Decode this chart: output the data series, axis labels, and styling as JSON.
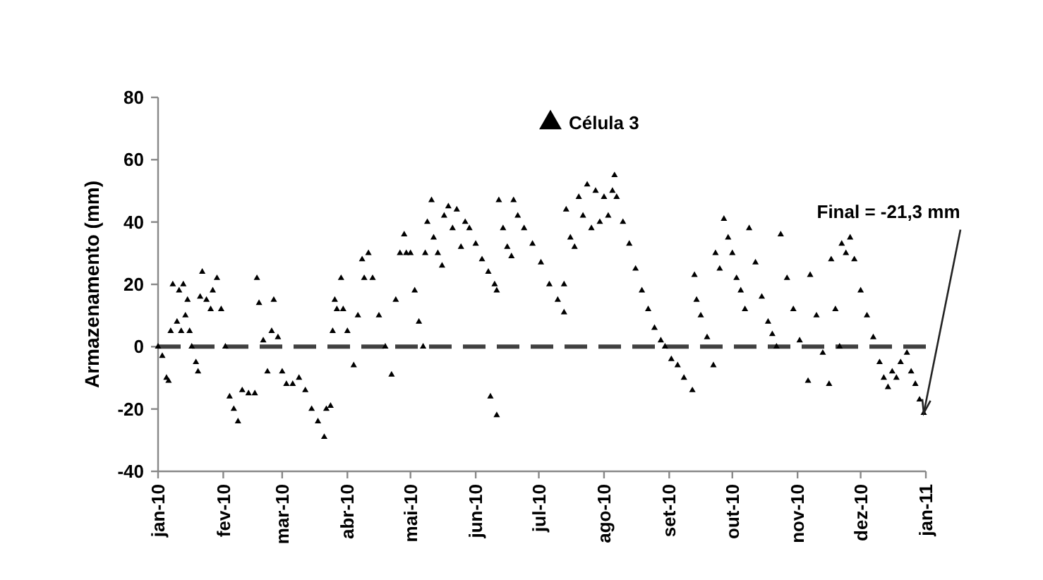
{
  "chart_data": {
    "type": "scatter",
    "ylabel": "Armazenamento (mm)",
    "marker": "triangle",
    "legend": "top",
    "grid": false,
    "xlim": [
      "2010-01-01",
      "2011-01-01"
    ],
    "xticks": [
      {
        "value": "2010-01",
        "label": "jan-10"
      },
      {
        "value": "2010-02",
        "label": "fev-10"
      },
      {
        "value": "2010-03",
        "label": "mar-10"
      },
      {
        "value": "2010-04",
        "label": "abr-10"
      },
      {
        "value": "2010-05",
        "label": "mai-10"
      },
      {
        "value": "2010-06",
        "label": "jun-10"
      },
      {
        "value": "2010-07",
        "label": "jul-10"
      },
      {
        "value": "2010-08",
        "label": "ago-10"
      },
      {
        "value": "2010-09",
        "label": "set-10"
      },
      {
        "value": "2010-10",
        "label": "out-10"
      },
      {
        "value": "2010-11",
        "label": "nov-10"
      },
      {
        "value": "2010-12",
        "label": "dez-10"
      },
      {
        "value": "2011-01",
        "label": "jan-11"
      }
    ],
    "ylim": [
      -40,
      80
    ],
    "yticks": [
      -40,
      -20,
      0,
      20,
      40,
      60,
      80
    ],
    "ref_lines": [
      {
        "axis": "y",
        "value": 0,
        "color": "#404040",
        "line_style": "dashed"
      }
    ],
    "annotations": [
      {
        "text": "Final = -21,3 mm",
        "x": "2010-12-31",
        "y": -21.3
      }
    ],
    "series": [
      {
        "name": "Célula 3",
        "color": "#000000",
        "x": [
          "2010-01-01",
          "2010-01-03",
          "2010-01-05",
          "2010-01-06",
          "2010-01-07",
          "2010-01-08",
          "2010-01-10",
          "2010-01-11",
          "2010-01-12",
          "2010-01-13",
          "2010-01-14",
          "2010-01-15",
          "2010-01-16",
          "2010-01-17",
          "2010-01-19",
          "2010-01-20",
          "2010-01-21",
          "2010-01-22",
          "2010-01-24",
          "2010-01-26",
          "2010-01-27",
          "2010-01-29",
          "2010-01-31",
          "2010-02-02",
          "2010-02-04",
          "2010-02-06",
          "2010-02-08",
          "2010-02-10",
          "2010-02-13",
          "2010-02-16",
          "2010-02-17",
          "2010-02-18",
          "2010-02-20",
          "2010-02-22",
          "2010-02-24",
          "2010-02-25",
          "2010-02-27",
          "2010-03-01",
          "2010-03-03",
          "2010-03-06",
          "2010-03-09",
          "2010-03-12",
          "2010-03-15",
          "2010-03-18",
          "2010-03-21",
          "2010-03-22",
          "2010-03-24",
          "2010-03-25",
          "2010-03-26",
          "2010-03-27",
          "2010-03-29",
          "2010-03-30",
          "2010-04-01",
          "2010-04-04",
          "2010-04-06",
          "2010-04-08",
          "2010-04-09",
          "2010-04-11",
          "2010-04-13",
          "2010-04-16",
          "2010-04-19",
          "2010-04-22",
          "2010-04-24",
          "2010-04-26",
          "2010-04-28",
          "2010-04-29",
          "2010-05-01",
          "2010-05-03",
          "2010-05-05",
          "2010-05-07",
          "2010-05-08",
          "2010-05-09",
          "2010-05-11",
          "2010-05-12",
          "2010-05-14",
          "2010-05-16",
          "2010-05-17",
          "2010-05-19",
          "2010-05-21",
          "2010-05-23",
          "2010-05-25",
          "2010-05-27",
          "2010-05-29",
          "2010-06-01",
          "2010-06-04",
          "2010-06-07",
          "2010-06-08",
          "2010-06-10",
          "2010-06-11",
          "2010-06-11",
          "2010-06-12",
          "2010-06-14",
          "2010-06-16",
          "2010-06-18",
          "2010-06-19",
          "2010-06-21",
          "2010-06-24",
          "2010-06-28",
          "2010-07-02",
          "2010-07-06",
          "2010-07-10",
          "2010-07-13",
          "2010-07-13",
          "2010-07-14",
          "2010-07-16",
          "2010-07-18",
          "2010-07-20",
          "2010-07-22",
          "2010-07-24",
          "2010-07-26",
          "2010-07-28",
          "2010-07-30",
          "2010-08-01",
          "2010-08-03",
          "2010-08-05",
          "2010-08-06",
          "2010-08-07",
          "2010-08-10",
          "2010-08-13",
          "2010-08-16",
          "2010-08-19",
          "2010-08-22",
          "2010-08-25",
          "2010-08-28",
          "2010-08-30",
          "2010-09-02",
          "2010-09-05",
          "2010-09-08",
          "2010-09-12",
          "2010-09-13",
          "2010-09-14",
          "2010-09-16",
          "2010-09-19",
          "2010-09-22",
          "2010-09-23",
          "2010-09-25",
          "2010-09-27",
          "2010-09-29",
          "2010-10-01",
          "2010-10-03",
          "2010-10-05",
          "2010-10-07",
          "2010-10-09",
          "2010-10-12",
          "2010-10-15",
          "2010-10-18",
          "2010-10-20",
          "2010-10-22",
          "2010-10-24",
          "2010-10-27",
          "2010-10-30",
          "2010-11-02",
          "2010-11-06",
          "2010-11-07",
          "2010-11-10",
          "2010-11-13",
          "2010-11-16",
          "2010-11-17",
          "2010-11-19",
          "2010-11-21",
          "2010-11-22",
          "2010-11-24",
          "2010-11-26",
          "2010-11-28",
          "2010-12-01",
          "2010-12-04",
          "2010-12-07",
          "2010-12-10",
          "2010-12-12",
          "2010-12-14",
          "2010-12-16",
          "2010-12-18",
          "2010-12-20",
          "2010-12-23",
          "2010-12-25",
          "2010-12-27",
          "2010-12-29",
          "2010-12-31"
        ],
        "values": [
          0,
          -3,
          -10,
          -11,
          5,
          20,
          8,
          18,
          5,
          20,
          10,
          15,
          5,
          0,
          -5,
          -8,
          16,
          24,
          15,
          12,
          18,
          22,
          12,
          0,
          -16,
          -20,
          -24,
          -14,
          -15,
          -15,
          22,
          14,
          2,
          -8,
          5,
          15,
          3,
          -8,
          -12,
          -12,
          -10,
          -14,
          -20,
          -24,
          -29,
          -20,
          -19,
          5,
          15,
          12,
          22,
          12,
          5,
          -6,
          10,
          28,
          22,
          30,
          22,
          10,
          0,
          -9,
          15,
          30,
          36,
          30,
          30,
          18,
          8,
          0,
          30,
          40,
          47,
          35,
          30,
          26,
          42,
          45,
          38,
          44,
          32,
          40,
          38,
          33,
          28,
          24,
          -16,
          20,
          18,
          -22,
          47,
          38,
          32,
          29,
          47,
          42,
          38,
          33,
          27,
          20,
          15,
          11,
          20,
          44,
          35,
          32,
          48,
          42,
          52,
          38,
          50,
          40,
          48,
          42,
          50,
          55,
          48,
          40,
          33,
          25,
          18,
          12,
          6,
          2,
          0,
          -4,
          -6,
          -10,
          -14,
          23,
          15,
          10,
          3,
          -6,
          30,
          25,
          41,
          35,
          30,
          22,
          18,
          12,
          38,
          27,
          16,
          8,
          4,
          0,
          36,
          22,
          12,
          2,
          -11,
          23,
          10,
          -2,
          -12,
          28,
          12,
          0,
          33,
          30,
          35,
          28,
          18,
          10,
          3,
          -5,
          -10,
          -13,
          -8,
          -10,
          -5,
          -2,
          -8,
          -12,
          -17,
          -21.3
        ]
      }
    ]
  }
}
